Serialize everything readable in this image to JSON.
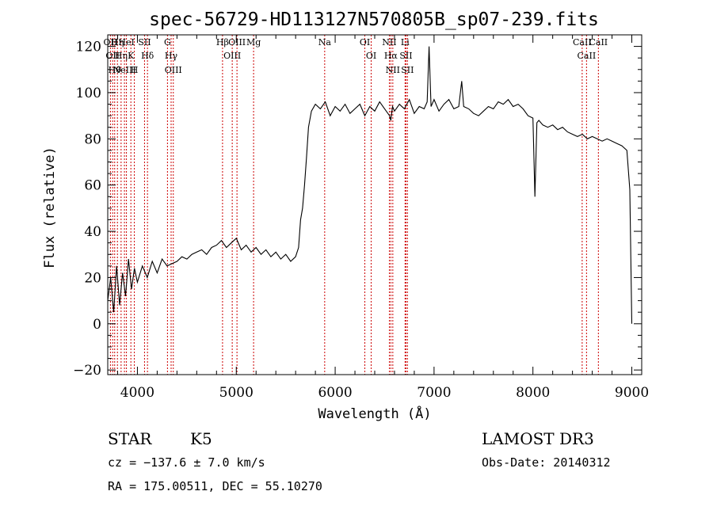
{
  "chart_data": {
    "type": "line",
    "title": "spec-56729-HD113127N570805B_sp07-239.fits",
    "xlabel": "Wavelength (Å)",
    "ylabel": "Flux (relative)",
    "xlim": [
      3700,
      9100
    ],
    "ylim": [
      -22,
      125
    ],
    "x_ticks": [
      4000,
      5000,
      6000,
      7000,
      8000,
      9000
    ],
    "x_tick_labels": [
      "4000",
      "5000",
      "6000",
      "7000",
      "8000",
      "9000"
    ],
    "y_ticks": [
      -20,
      0,
      20,
      40,
      60,
      80,
      100,
      120
    ],
    "y_tick_labels": [
      "−20",
      "0",
      "20",
      "40",
      "60",
      "80",
      "100",
      "120"
    ],
    "series": [
      {
        "x": [
          3700,
          3730,
          3760,
          3790,
          3820,
          3850,
          3880,
          3910,
          3940,
          3970,
          4000,
          4050,
          4100,
          4150,
          4200,
          4250,
          4300,
          4350,
          4400,
          4450,
          4500,
          4550,
          4600,
          4650,
          4700,
          4750,
          4800,
          4850,
          4900,
          4950,
          5000,
          5050,
          5100,
          5150,
          5200,
          5250,
          5300,
          5350,
          5400,
          5450,
          5500,
          5550,
          5600,
          5630,
          5650,
          5670,
          5690,
          5710,
          5730,
          5760,
          5800,
          5850,
          5900,
          5950,
          6000,
          6050,
          6100,
          6150,
          6200,
          6250,
          6300,
          6350,
          6400,
          6450,
          6500,
          6550,
          6563,
          6580,
          6600,
          6650,
          6700,
          6750,
          6800,
          6850,
          6900,
          6930,
          6950,
          6970,
          7000,
          7050,
          7100,
          7150,
          7200,
          7250,
          7280,
          7300,
          7350,
          7400,
          7450,
          7500,
          7550,
          7600,
          7650,
          7700,
          7750,
          7800,
          7850,
          7900,
          7950,
          8000,
          8020,
          8040,
          8060,
          8100,
          8150,
          8200,
          8250,
          8300,
          8350,
          8400,
          8450,
          8500,
          8550,
          8600,
          8650,
          8700,
          8750,
          8800,
          8850,
          8900,
          8950,
          8980,
          9000
        ],
        "y": [
          10,
          20,
          5,
          25,
          8,
          22,
          12,
          28,
          15,
          24,
          18,
          25,
          20,
          27,
          22,
          28,
          25,
          26,
          27,
          29,
          28,
          30,
          31,
          32,
          30,
          33,
          34,
          36,
          33,
          35,
          37,
          32,
          34,
          31,
          33,
          30,
          32,
          29,
          31,
          28,
          30,
          27,
          29,
          33,
          45,
          50,
          60,
          72,
          85,
          92,
          95,
          93,
          96,
          90,
          94,
          92,
          95,
          91,
          93,
          95,
          90,
          94,
          92,
          96,
          93,
          90,
          88,
          94,
          92,
          95,
          93,
          97,
          91,
          94,
          93,
          96,
          120,
          94,
          97,
          92,
          95,
          97,
          93,
          94,
          105,
          94,
          93,
          91,
          90,
          92,
          94,
          93,
          96,
          95,
          97,
          94,
          95,
          93,
          90,
          89,
          55,
          87,
          88,
          86,
          85,
          86,
          84,
          85,
          83,
          82,
          81,
          82,
          80,
          81,
          80,
          79,
          80,
          79,
          78,
          77,
          75,
          58,
          0
        ]
      }
    ],
    "line_markers": [
      {
        "x": 3727,
        "label": "OII"
      },
      {
        "x": 3750,
        "label": "OII"
      },
      {
        "x": 3770,
        "label": "Hθ"
      },
      {
        "x": 3798,
        "label": "Hη"
      },
      {
        "x": 3835,
        "label": "Hη"
      },
      {
        "x": 3869,
        "label": "NeIII"
      },
      {
        "x": 3889,
        "label": "HeI"
      },
      {
        "x": 3934,
        "label": "K"
      },
      {
        "x": 3969,
        "label": "H"
      },
      {
        "x": 4072,
        "label": "SII"
      },
      {
        "x": 4102,
        "label": "Hδ"
      },
      {
        "x": 4304,
        "label": "G"
      },
      {
        "x": 4341,
        "label": "Hγ"
      },
      {
        "x": 4363,
        "label": "OIII"
      },
      {
        "x": 4861,
        "label": "Hβ"
      },
      {
        "x": 4959,
        "label": "OIII"
      },
      {
        "x": 5007,
        "label": "OIII"
      },
      {
        "x": 5175,
        "label": "Mg"
      },
      {
        "x": 5894,
        "label": "Na"
      },
      {
        "x": 6300,
        "label": "OI"
      },
      {
        "x": 6364,
        "label": "OI"
      },
      {
        "x": 6548,
        "label": "NII"
      },
      {
        "x": 6563,
        "label": "Hα"
      },
      {
        "x": 6583,
        "label": "NII"
      },
      {
        "x": 6707,
        "label": "Li"
      },
      {
        "x": 6716,
        "label": "SII"
      },
      {
        "x": 6731,
        "label": "SII"
      },
      {
        "x": 8498,
        "label": "CaII"
      },
      {
        "x": 8542,
        "label": "CaII"
      },
      {
        "x": 8662,
        "label": "CaII"
      }
    ]
  },
  "info": {
    "object_class": "STAR",
    "subclass": "K5",
    "survey": "LAMOST DR3",
    "velocity": "cz = −137.6 ± 7.0 km/s",
    "obs_date": "Obs-Date: 20140312",
    "coordinates": "RA = 175.00511, DEC =  55.10270"
  },
  "colors": {
    "spectrum": "#000000",
    "line_markers": "#cc0000",
    "axes": "#000000"
  }
}
